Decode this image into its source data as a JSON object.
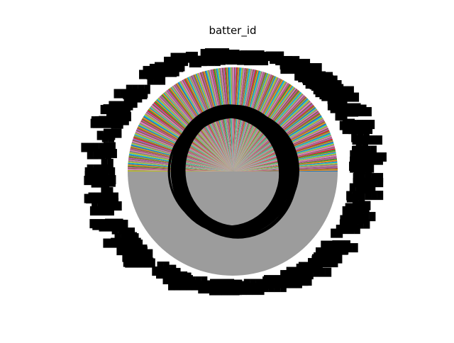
{
  "chart_data": {
    "type": "pie",
    "title": "batter_id",
    "slice_colors": [
      "#1f77b4",
      "#ff7f0e",
      "#2ca02c",
      "#d62728",
      "#9467bd",
      "#8c564b",
      "#e377c2",
      "#7f7f7f",
      "#bcbd22",
      "#17becf"
    ],
    "slice_count_estimate": 330,
    "large_slice_share_estimate": 0.5,
    "label_text_color": "#000000",
    "legend": "none"
  }
}
